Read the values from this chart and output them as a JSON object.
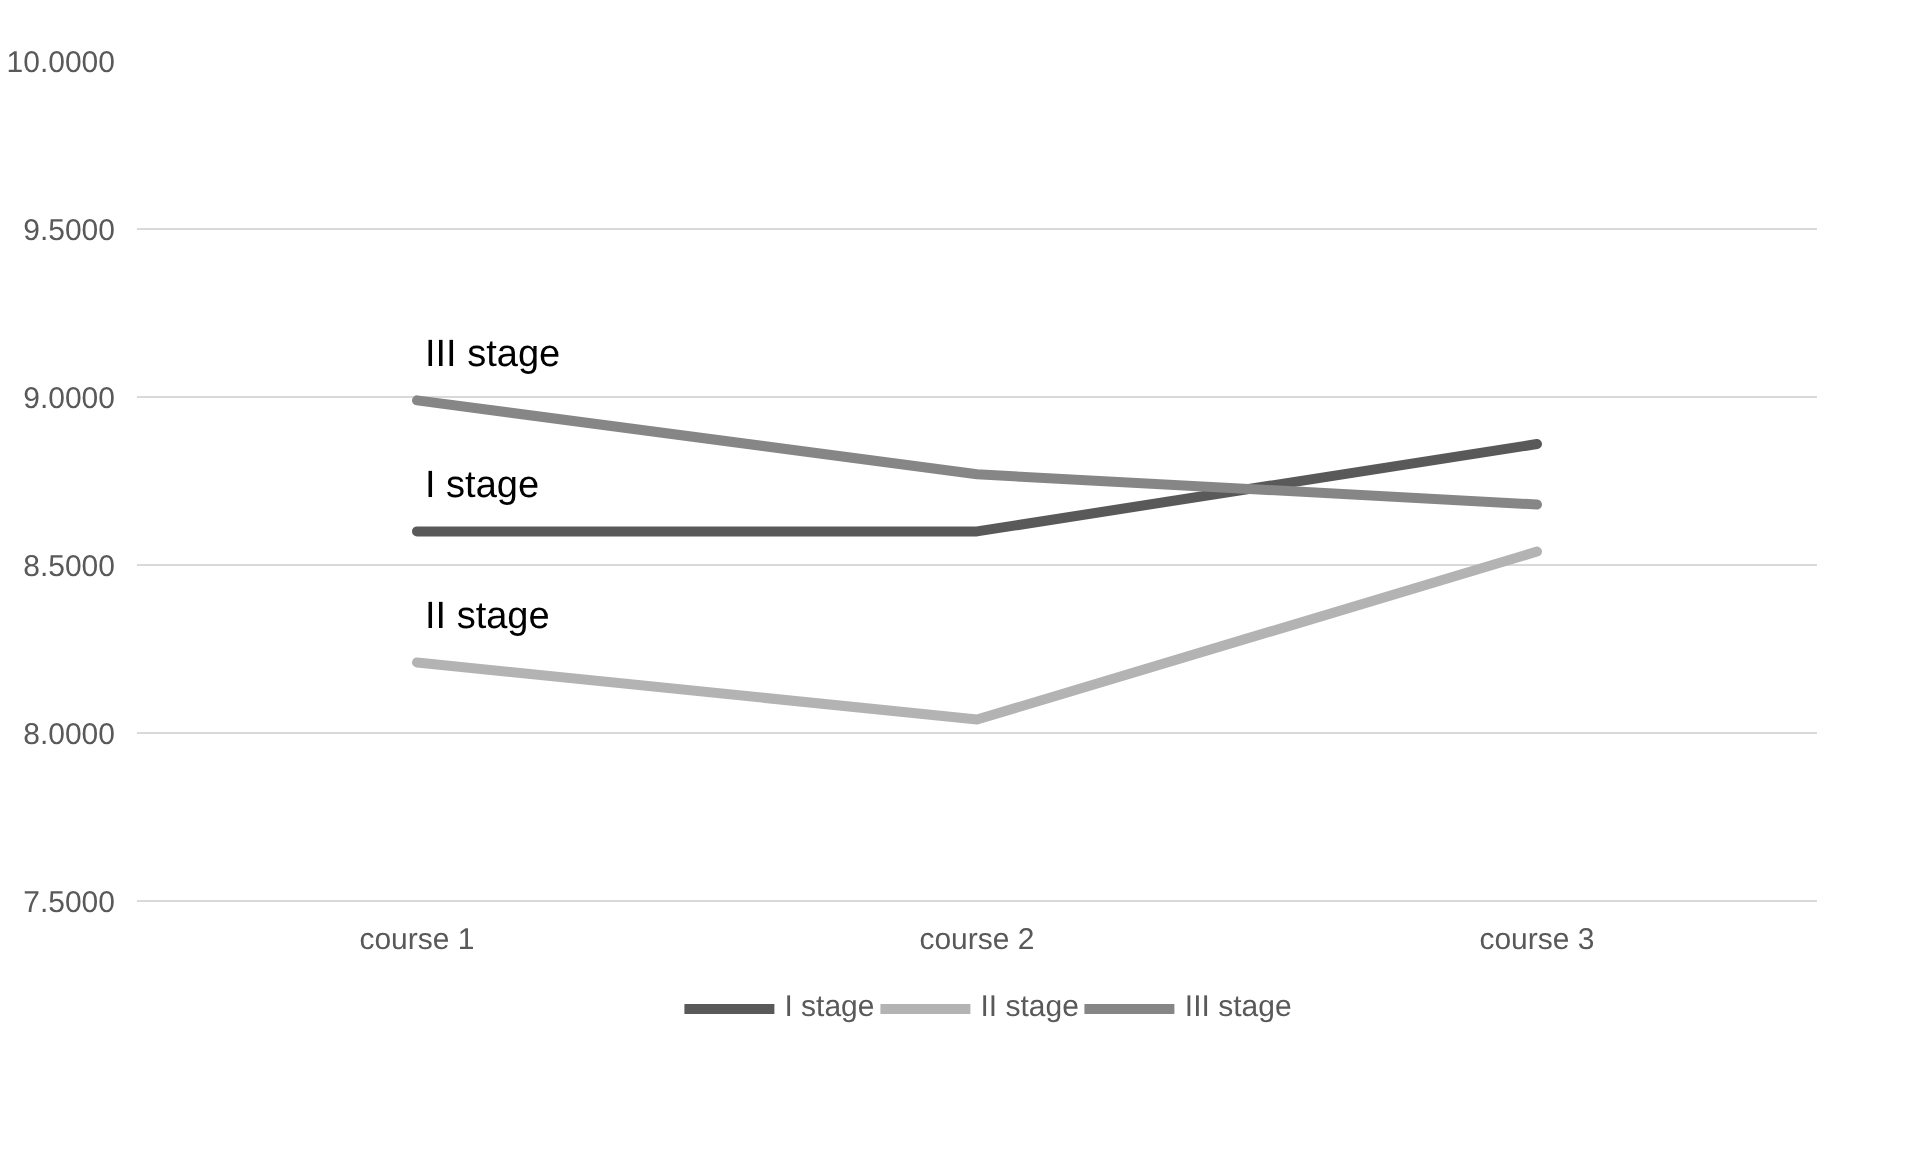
{
  "chart_data": {
    "type": "line",
    "categories": [
      "course 1",
      "course 2",
      "course 3"
    ],
    "series": [
      {
        "name": "I stage",
        "color": "#595959",
        "values": [
          8.6,
          8.6,
          8.86
        ]
      },
      {
        "name": "II stage",
        "color": "#b3b3b3",
        "values": [
          8.21,
          8.04,
          8.54
        ]
      },
      {
        "name": "III stage",
        "color": "#868686",
        "values": [
          8.99,
          8.77,
          8.68
        ]
      }
    ],
    "ylim": [
      7.5,
      10.0
    ],
    "yticks": [
      {
        "value": 7.5,
        "label": "7.5000"
      },
      {
        "value": 8.0,
        "label": "8.0000"
      },
      {
        "value": 8.5,
        "label": "8.5000"
      },
      {
        "value": 9.0,
        "label": "9.0000"
      },
      {
        "value": 9.5,
        "label": "9.5000"
      },
      {
        "value": 10.0,
        "label": "10.0000"
      }
    ],
    "grid": "y",
    "legend": "bottom",
    "marker": "none",
    "line_style": "solid"
  }
}
